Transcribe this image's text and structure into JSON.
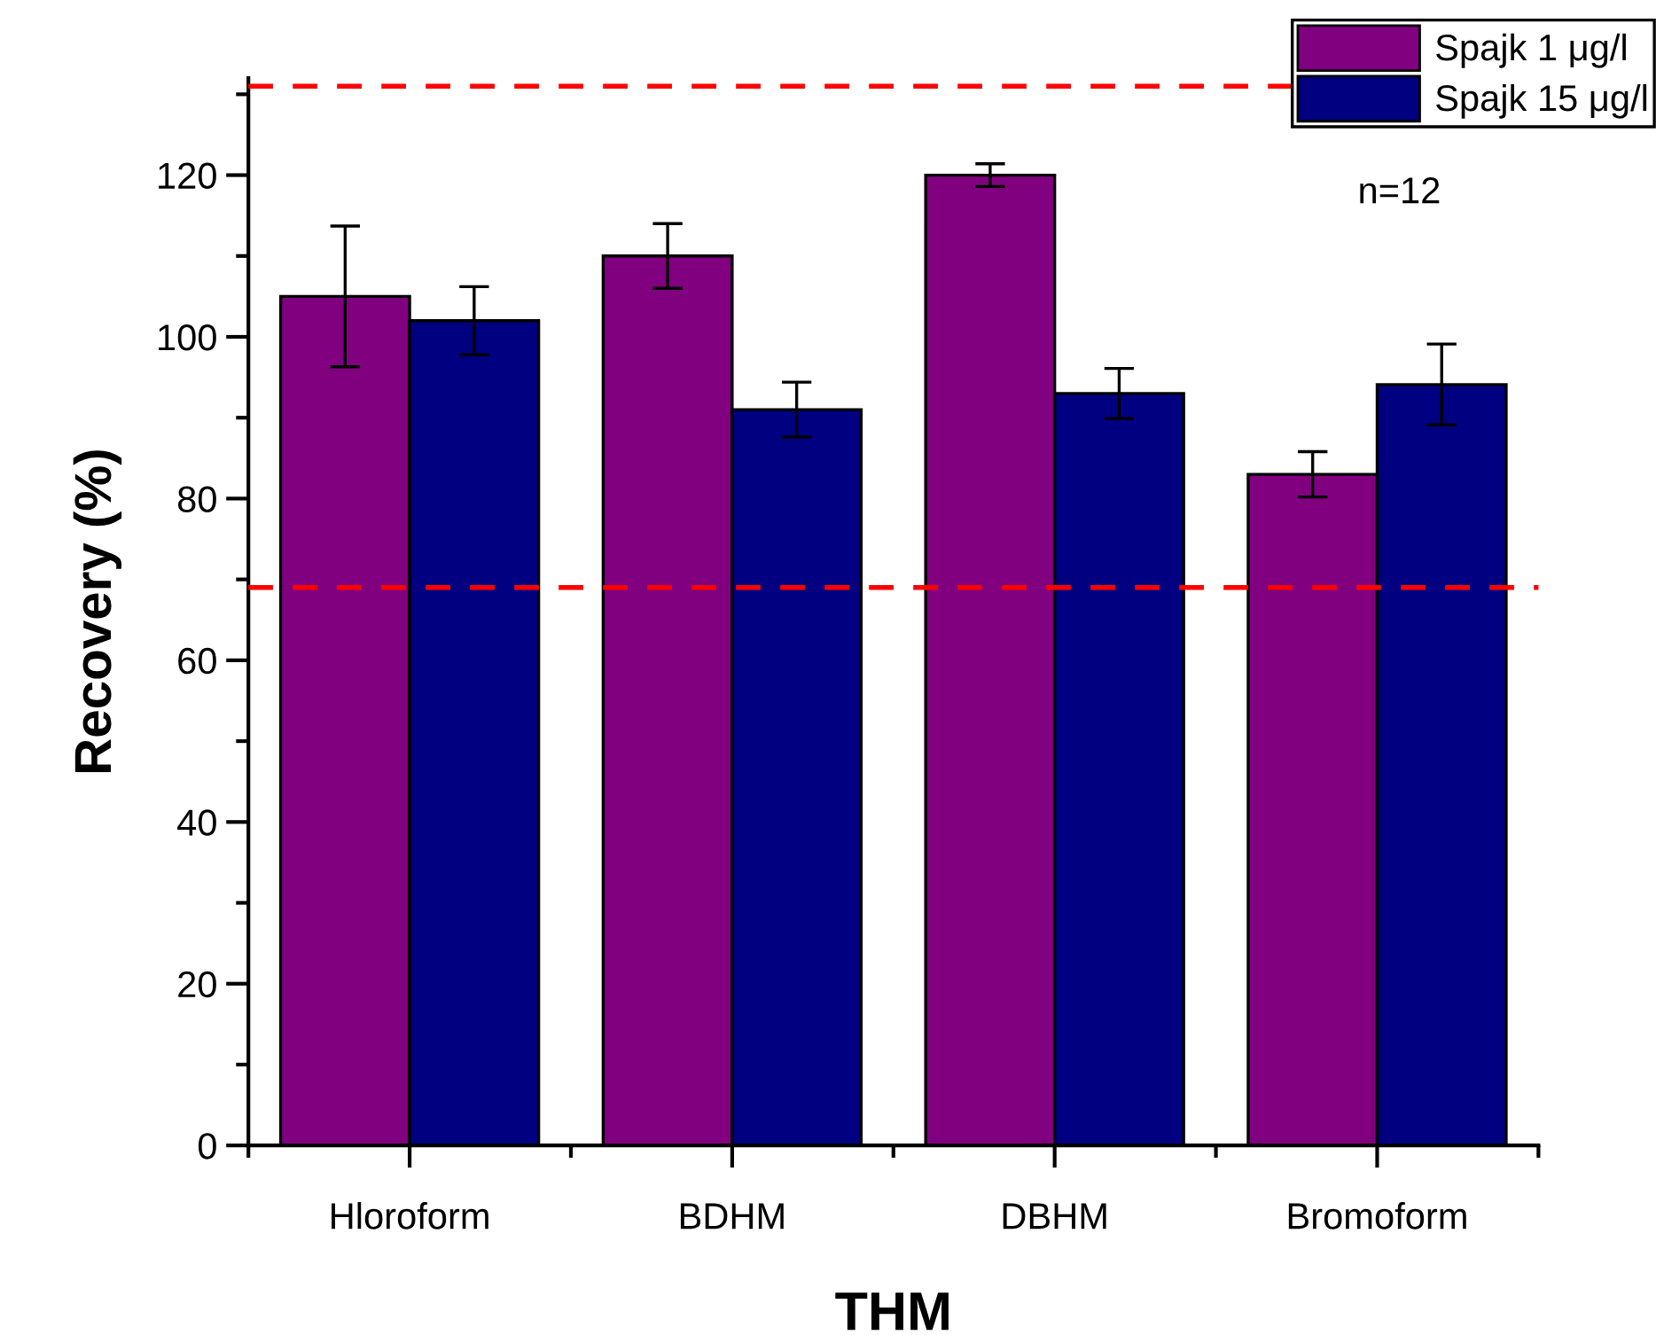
{
  "chart_data": {
    "type": "bar",
    "xlabel": "THM",
    "ylabel": "Recovery (%)",
    "categories": [
      "Hloroform",
      "BDHM",
      "DBHM",
      "Bromoform"
    ],
    "series": [
      {
        "name": "Spajk 1 μg/l",
        "color": "#800080",
        "values": [
          105,
          110,
          120,
          83
        ],
        "errors": [
          8.7,
          4,
          1.4,
          2.8
        ]
      },
      {
        "name": "Spajk 15 μg/l",
        "color": "#000080",
        "values": [
          102,
          91,
          93,
          94.1
        ],
        "errors": [
          4.2,
          3.4,
          3.1,
          5
        ]
      }
    ],
    "ylim": [
      0,
      132
    ],
    "yticks": [
      0,
      {
        "value": 10,
        "label": null
      },
      20,
      {
        "value": 30,
        "label": null
      },
      40,
      {
        "value": 50,
        "label": null
      },
      60,
      {
        "value": 70,
        "label": null
      },
      80,
      {
        "value": 90,
        "label": null
      },
      100,
      {
        "value": 110,
        "label": null
      },
      120,
      {
        "value": 130,
        "label": null
      }
    ],
    "ref_lines": [
      {
        "axis": "y",
        "value": 131,
        "color": "#ff0000",
        "line_style": "dashed"
      },
      {
        "axis": "y",
        "value": 69,
        "color": "#ff0000",
        "line_style": "dashed"
      }
    ],
    "annotations": [
      "n=12"
    ],
    "legend": "top right",
    "grid": false
  }
}
